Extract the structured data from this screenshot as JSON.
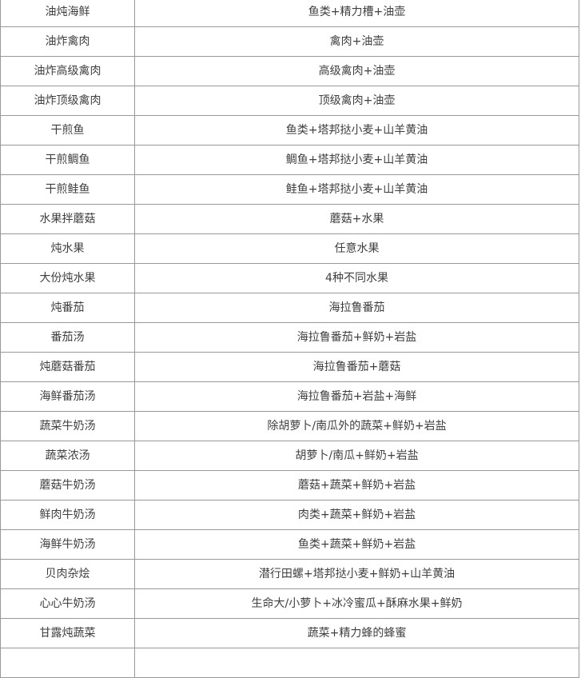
{
  "colors": {
    "background": "#ffffff",
    "border": "#999999",
    "text": "#3f3f3f"
  },
  "table": {
    "rows": [
      {
        "dish": "油炖海鲜",
        "ingredients": "鱼类+精力槽+油壶"
      },
      {
        "dish": "油炸禽肉",
        "ingredients": "禽肉+油壶"
      },
      {
        "dish": "油炸高级禽肉",
        "ingredients": "高级禽肉+油壶"
      },
      {
        "dish": "油炸顶级禽肉",
        "ingredients": "顶级禽肉+油壶"
      },
      {
        "dish": "干煎鱼",
        "ingredients": "鱼类+塔邦挞小麦+山羊黄油"
      },
      {
        "dish": "干煎鲷鱼",
        "ingredients": "鲷鱼+塔邦挞小麦+山羊黄油"
      },
      {
        "dish": "干煎鲑鱼",
        "ingredients": "鲑鱼+塔邦挞小麦+山羊黄油"
      },
      {
        "dish": "水果拌蘑菇",
        "ingredients": "蘑菇+水果"
      },
      {
        "dish": "炖水果",
        "ingredients": "任意水果"
      },
      {
        "dish": "大份炖水果",
        "ingredients": "4种不同水果"
      },
      {
        "dish": "炖番茄",
        "ingredients": "海拉鲁番茄"
      },
      {
        "dish": "番茄汤",
        "ingredients": "海拉鲁番茄+鲜奶+岩盐"
      },
      {
        "dish": "炖蘑菇番茄",
        "ingredients": "海拉鲁番茄+蘑菇"
      },
      {
        "dish": "海鲜番茄汤",
        "ingredients": "海拉鲁番茄+岩盐+海鲜"
      },
      {
        "dish": "蔬菜牛奶汤",
        "ingredients": "除胡萝卜/南瓜外的蔬菜+鲜奶+岩盐"
      },
      {
        "dish": "蔬菜浓汤",
        "ingredients": "胡萝卜/南瓜+鲜奶+岩盐"
      },
      {
        "dish": "蘑菇牛奶汤",
        "ingredients": "蘑菇+蔬菜+鲜奶+岩盐"
      },
      {
        "dish": "鲜肉牛奶汤",
        "ingredients": "肉类+蔬菜+鲜奶+岩盐"
      },
      {
        "dish": "海鲜牛奶汤",
        "ingredients": "鱼类+蔬菜+鲜奶+岩盐"
      },
      {
        "dish": "贝肉杂烩",
        "ingredients": "潜行田螺+塔邦挞小麦+鲜奶+山羊黄油"
      },
      {
        "dish": "心心牛奶汤",
        "ingredients": "生命大/小萝卜+冰冷蜜瓜+酥麻水果+鲜奶"
      },
      {
        "dish": "甘露炖蔬菜",
        "ingredients": "蔬菜+精力蜂的蜂蜜"
      }
    ]
  }
}
